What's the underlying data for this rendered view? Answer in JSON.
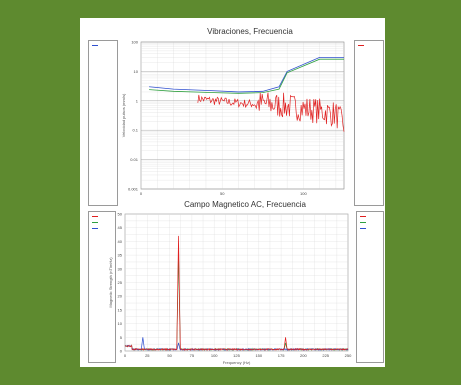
{
  "colors": {
    "background": "#5e8a2f",
    "red": "#e02020",
    "green": "#30a040",
    "blue": "#3050d0",
    "grid": "#d8d8d8"
  },
  "chart_data": [
    {
      "type": "line",
      "title": "Vibraciones, Frecuencia",
      "xlabel": "",
      "ylabel": "Velocidad pulsos (mm/s)",
      "yscale": "log",
      "ylim": [
        0.001,
        100
      ],
      "xlim": [
        0,
        125
      ],
      "y_ticks": [
        "100",
        "10",
        "1",
        "0.1",
        "0.01",
        "0.001"
      ],
      "x_ticks": [
        "0",
        "50",
        "100"
      ],
      "grid": true,
      "series": [
        {
          "color": "#3050d0",
          "x": [
            5,
            20,
            45,
            60,
            75,
            85,
            90,
            110,
            125
          ],
          "y": [
            3,
            2.5,
            2.2,
            2,
            2.1,
            3,
            10,
            30,
            30
          ]
        },
        {
          "color": "#30a040",
          "x": [
            5,
            20,
            45,
            60,
            75,
            85,
            90,
            110,
            125
          ],
          "y": [
            2.4,
            2.1,
            1.9,
            1.8,
            1.9,
            2.5,
            9,
            26,
            26
          ]
        },
        {
          "color": "#e02020",
          "x": [
            35,
            45,
            55,
            65,
            75,
            85,
            95,
            105,
            115,
            120,
            125
          ],
          "y": [
            1.2,
            1.0,
            0.9,
            0.8,
            0.8,
            0.7,
            0.6,
            0.5,
            0.4,
            0.35,
            0.15
          ]
        }
      ]
    },
    {
      "type": "line",
      "title": "Campo Magnetico AC, Frecuencia",
      "xlabel": "Frequency (Hz)",
      "ylabel": "Magnetic Strength (nT/mHz)",
      "ylim": [
        0,
        50
      ],
      "xlim": [
        0,
        250
      ],
      "y_ticks": [
        "50",
        "45",
        "40",
        "35",
        "30",
        "25",
        "20",
        "15",
        "10",
        "5",
        "0"
      ],
      "x_ticks": [
        "0",
        "25",
        "50",
        "75",
        "100",
        "125",
        "150",
        "175",
        "200",
        "225",
        "250"
      ],
      "grid": true,
      "series": [
        {
          "color": "#e02020",
          "peaks": [
            {
              "x": 60,
              "y": 42
            },
            {
              "x": 180,
              "y": 5
            }
          ]
        },
        {
          "color": "#30a040",
          "peaks": [
            {
              "x": 60,
              "y": 36
            },
            {
              "x": 180,
              "y": 3
            }
          ]
        },
        {
          "color": "#3050d0",
          "peaks": [
            {
              "x": 20,
              "y": 5
            },
            {
              "x": 60,
              "y": 3
            }
          ]
        }
      ]
    }
  ]
}
